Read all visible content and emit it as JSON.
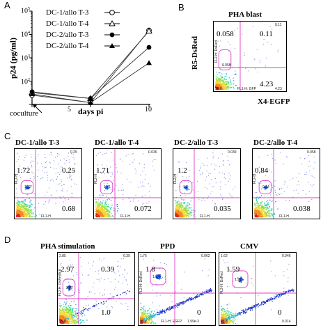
{
  "panels": {
    "A": {
      "letter": "A",
      "chart_data": {
        "type": "line",
        "x": [
          0,
          5,
          10
        ],
        "xlim": [
          0,
          10
        ],
        "ylim": [
          10,
          100000
        ],
        "yscale": "log",
        "xlabel": "days pi",
        "ylabel": "p24 (pg/ml)",
        "xticks": [
          "0",
          "5",
          "10"
        ],
        "yticks": [
          {
            "base": "10",
            "exp": "5"
          },
          {
            "base": "10",
            "exp": "4"
          },
          {
            "base": "10",
            "exp": "3"
          },
          {
            "base": "10",
            "exp": "2"
          }
        ],
        "series": [
          {
            "name": "DC-1/allo T-3",
            "marker": "circle-open",
            "values": [
              25,
              12,
              15000
            ]
          },
          {
            "name": "DC-1/allo T-4",
            "marker": "triangle-open",
            "values": [
              32,
              18,
              14000
            ]
          },
          {
            "name": "DC-2/allo T-3",
            "marker": "circle-filled",
            "values": [
              35,
              18,
              2800
            ]
          },
          {
            "name": "DC-2/allo T-4",
            "marker": "triangle-filled",
            "values": [
              28,
              12,
              600
            ]
          }
        ],
        "annotations": [
          {
            "text": "coculture"
          }
        ]
      }
    },
    "B": {
      "letter": "B",
      "title": "PHA blast",
      "ylabel": "R5-DsRed",
      "xlabel": "X4-EGFP",
      "ul": "0.058",
      "ur": "0.11",
      "lr": "4.23",
      "tiny": {
        "ur": "0.11",
        "gate": "0.058",
        "lr": "4.23",
        "ll": "95.6",
        "x": "FL1-H: GFP",
        "y": "FL2-H: DsRed"
      }
    },
    "C": {
      "letter": "C",
      "plots": [
        {
          "title": "DC-1/allo T-3",
          "ul": "1.72",
          "ur": "0.25",
          "lr": "0.68",
          "tiny_ur": "0.25",
          "gate": "1.72",
          "x": "FL1-H",
          "y": "FL2-H"
        },
        {
          "title": "DC-1/allo T-4",
          "ul": "1.71",
          "ur": "",
          "lr": "0.072",
          "tiny_ur": "0.036",
          "gate": "1.71",
          "x": "FL1-H",
          "y": "FL2-H"
        },
        {
          "title": "DC-2/allo T-3",
          "ul": "1.2",
          "ur": "",
          "lr": "0.035",
          "tiny_ur": "0.039",
          "gate": "1.2",
          "x": "FL1-H",
          "y": "FL2-H"
        },
        {
          "title": "DC-2/allo T-4",
          "ul": "0.84",
          "ur": "",
          "lr": "0.038",
          "tiny_ur": "0.058",
          "gate": "0.84",
          "x": "FL1-H",
          "y": "FL2-H"
        }
      ]
    },
    "D": {
      "letter": "D",
      "plots": [
        {
          "title": "PHA stimulation",
          "ul": "2.97",
          "ur": "0.39",
          "lr": "1.0",
          "tiny_ul": "2.85",
          "tiny_ur": "0.39",
          "gate": "2.97",
          "ll": "95.8",
          "y": "FL2-H: DsRed5.8"
        },
        {
          "title": "PPD",
          "ul": "1.8",
          "ur": "",
          "lr": "0",
          "tiny_ul": "1.76",
          "tiny_ur": "0.062",
          "gate": "1.8",
          "ll": "98.2",
          "x": "FL1-H: EGFP",
          "tiny_lr": "1.99e-3",
          "y": "FL2-H: DsRed"
        },
        {
          "title": "CMV",
          "ul": "1.59",
          "ur": "",
          "lr": "0",
          "tiny_ul": "1.62",
          "tiny_ur": "0.046",
          "gate": "1.59",
          "ll": "98.3",
          "tiny_lr": "0.014",
          "y": "FL2-H: DsRed"
        }
      ]
    }
  }
}
